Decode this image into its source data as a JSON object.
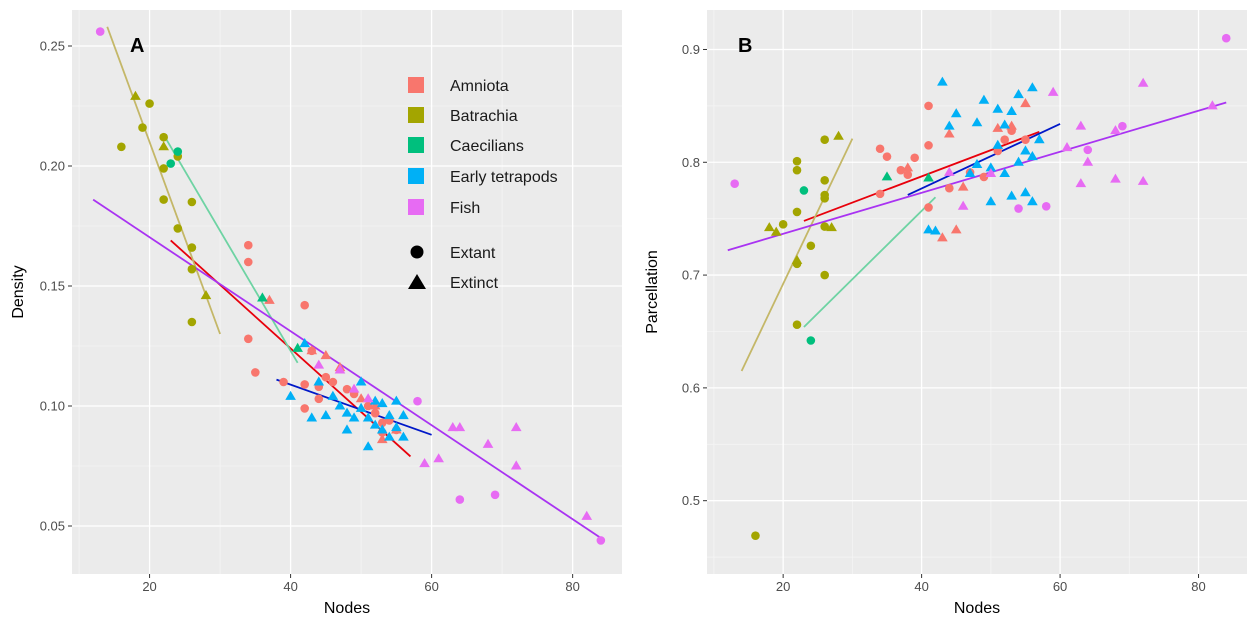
{
  "colors": {
    "panel_bg": "#EBEBEB",
    "grid_major": "#FFFFFF",
    "Amniota": "#F8766D",
    "Batrachia": "#A3A500",
    "Caecilians": "#00BF7D",
    "Early tetrapods": "#00B0F6",
    "Fish": "#E76BF3"
  },
  "chart_data": [
    {
      "type": "scatter",
      "panel_label": "A",
      "xlabel": "Nodes",
      "ylabel": "Density",
      "xlim": [
        9,
        87
      ],
      "ylim": [
        0.03,
        0.265
      ],
      "xticks": [
        20,
        40,
        60,
        80
      ],
      "xtick_labels": [
        "20",
        "40",
        "60",
        "80"
      ],
      "yticks": [
        0.05,
        0.1,
        0.15,
        0.2,
        0.25
      ],
      "ytick_labels": [
        "0.05",
        "0.10",
        "0.15",
        "0.20",
        "0.25"
      ],
      "grid": true,
      "legend_placement": "top-right",
      "legend": {
        "groups": [
          {
            "label": "Amniota",
            "key": "Amniota"
          },
          {
            "label": "Batrachia",
            "key": "Batrachia"
          },
          {
            "label": "Caecilians",
            "key": "Caecilians"
          },
          {
            "label": "Early tetrapods",
            "key": "Early tetrapods"
          },
          {
            "label": "Fish",
            "key": "Fish"
          }
        ],
        "status": [
          {
            "label": "Extant",
            "shape": "circle"
          },
          {
            "label": "Extinct",
            "shape": "triangle"
          }
        ]
      },
      "series": [
        {
          "group": "Amniota",
          "shape": "circle",
          "x": [
            34,
            34,
            34,
            35,
            39,
            42,
            42,
            42,
            43,
            44,
            44,
            45,
            46,
            48,
            49,
            51,
            52,
            53,
            53,
            54,
            55
          ],
          "y": [
            0.167,
            0.16,
            0.128,
            0.114,
            0.11,
            0.142,
            0.109,
            0.099,
            0.123,
            0.108,
            0.103,
            0.112,
            0.11,
            0.107,
            0.105,
            0.1,
            0.097,
            0.093,
            0.089,
            0.094,
            0.09
          ]
        },
        {
          "group": "Amniota",
          "shape": "triangle",
          "x": [
            37,
            43,
            45,
            47,
            50,
            52,
            53,
            55
          ],
          "y": [
            0.144,
            0.123,
            0.121,
            0.116,
            0.103,
            0.1,
            0.086,
            0.09
          ]
        },
        {
          "group": "Batrachia",
          "shape": "circle",
          "x": [
            16,
            19,
            20,
            22,
            22,
            22,
            24,
            24,
            26,
            26,
            26,
            26
          ],
          "y": [
            0.208,
            0.216,
            0.226,
            0.212,
            0.199,
            0.186,
            0.204,
            0.174,
            0.185,
            0.166,
            0.157,
            0.135
          ]
        },
        {
          "group": "Batrachia",
          "shape": "triangle",
          "x": [
            18,
            22,
            28
          ],
          "y": [
            0.229,
            0.208,
            0.146
          ]
        },
        {
          "group": "Caecilians",
          "shape": "circle",
          "x": [
            23,
            24
          ],
          "y": [
            0.201,
            0.206
          ]
        },
        {
          "group": "Caecilians",
          "shape": "triangle",
          "x": [
            36,
            41
          ],
          "y": [
            0.145,
            0.124
          ]
        },
        {
          "group": "Early tetrapods",
          "shape": "triangle",
          "x": [
            40,
            42,
            43,
            44,
            45,
            46,
            47,
            48,
            48,
            49,
            50,
            50,
            51,
            51,
            52,
            52,
            53,
            53,
            54,
            54,
            55,
            55,
            56,
            56
          ],
          "y": [
            0.104,
            0.126,
            0.095,
            0.11,
            0.096,
            0.104,
            0.1,
            0.097,
            0.09,
            0.095,
            0.11,
            0.099,
            0.095,
            0.083,
            0.102,
            0.092,
            0.101,
            0.09,
            0.096,
            0.087,
            0.102,
            0.091,
            0.096,
            0.087
          ]
        },
        {
          "group": "Fish",
          "shape": "circle",
          "x": [
            13,
            58,
            64,
            69,
            84
          ],
          "y": [
            0.256,
            0.102,
            0.061,
            0.063,
            0.044
          ]
        },
        {
          "group": "Fish",
          "shape": "triangle",
          "x": [
            44,
            47,
            49,
            51,
            59,
            61,
            63,
            64,
            68,
            72,
            72,
            82
          ],
          "y": [
            0.117,
            0.115,
            0.107,
            0.103,
            0.076,
            0.078,
            0.091,
            0.091,
            0.084,
            0.091,
            0.075,
            0.054
          ]
        }
      ],
      "trend_lines": [
        {
          "group": "Amniota",
          "x": [
            23,
            57
          ],
          "y": [
            0.169,
            0.079
          ]
        },
        {
          "group": "Batrachia",
          "x": [
            14,
            30
          ],
          "y": [
            0.258,
            0.13
          ]
        },
        {
          "group": "Caecilians",
          "x": [
            22,
            41
          ],
          "y": [
            0.213,
            0.118
          ]
        },
        {
          "group": "Early tetrapods",
          "x": [
            38,
            60
          ],
          "y": [
            0.111,
            0.088
          ]
        },
        {
          "group": "Fish",
          "x": [
            12,
            84
          ],
          "y": [
            0.186,
            0.045
          ]
        }
      ]
    },
    {
      "type": "scatter",
      "panel_label": "B",
      "xlabel": "Nodes",
      "ylabel": "Parcellation",
      "xlim": [
        9,
        87
      ],
      "ylim": [
        0.435,
        0.935
      ],
      "xticks": [
        20,
        40,
        60,
        80
      ],
      "xtick_labels": [
        "20",
        "40",
        "60",
        "80"
      ],
      "yticks": [
        0.5,
        0.6,
        0.7,
        0.8,
        0.9
      ],
      "ytick_labels": [
        "0.5",
        "0.6",
        "0.7",
        "0.8",
        "0.9"
      ],
      "grid": true,
      "series": [
        {
          "group": "Amniota",
          "shape": "circle",
          "x": [
            34,
            34,
            35,
            37,
            38,
            39,
            41,
            41,
            41,
            44,
            47,
            49,
            51,
            52,
            53,
            55
          ],
          "y": [
            0.812,
            0.772,
            0.805,
            0.793,
            0.789,
            0.804,
            0.85,
            0.815,
            0.76,
            0.777,
            0.791,
            0.787,
            0.81,
            0.82,
            0.828,
            0.82
          ]
        },
        {
          "group": "Amniota",
          "shape": "triangle",
          "x": [
            38,
            43,
            44,
            45,
            46,
            51,
            53,
            55
          ],
          "y": [
            0.795,
            0.733,
            0.825,
            0.74,
            0.778,
            0.83,
            0.832,
            0.852
          ]
        },
        {
          "group": "Batrachia",
          "shape": "circle",
          "x": [
            16,
            20,
            22,
            22,
            22,
            22,
            22,
            24,
            26,
            26,
            26,
            26,
            26,
            26
          ],
          "y": [
            0.469,
            0.745,
            0.801,
            0.793,
            0.756,
            0.71,
            0.656,
            0.726,
            0.82,
            0.784,
            0.771,
            0.743,
            0.7,
            0.768
          ]
        },
        {
          "group": "Batrachia",
          "shape": "triangle",
          "x": [
            18,
            19,
            22,
            27,
            28
          ],
          "y": [
            0.742,
            0.738,
            0.713,
            0.742,
            0.823
          ]
        },
        {
          "group": "Caecilians",
          "shape": "circle",
          "x": [
            23,
            24
          ],
          "y": [
            0.775,
            0.642
          ]
        },
        {
          "group": "Caecilians",
          "shape": "triangle",
          "x": [
            35,
            41
          ],
          "y": [
            0.787,
            0.786
          ]
        },
        {
          "group": "Early tetrapods",
          "shape": "triangle",
          "x": [
            41,
            42,
            43,
            44,
            45,
            47,
            48,
            48,
            49,
            50,
            50,
            51,
            51,
            52,
            52,
            53,
            53,
            54,
            54,
            55,
            55,
            56,
            56,
            56,
            57
          ],
          "y": [
            0.74,
            0.739,
            0.871,
            0.832,
            0.843,
            0.79,
            0.835,
            0.798,
            0.855,
            0.795,
            0.765,
            0.847,
            0.815,
            0.833,
            0.79,
            0.845,
            0.77,
            0.86,
            0.8,
            0.81,
            0.773,
            0.866,
            0.805,
            0.765,
            0.82
          ]
        },
        {
          "group": "Fish",
          "shape": "circle",
          "x": [
            13,
            54,
            58,
            64,
            69,
            84
          ],
          "y": [
            0.781,
            0.759,
            0.761,
            0.811,
            0.832,
            0.91
          ]
        },
        {
          "group": "Fish",
          "shape": "triangle",
          "x": [
            44,
            46,
            50,
            59,
            61,
            63,
            63,
            64,
            68,
            68,
            72,
            72,
            82
          ],
          "y": [
            0.791,
            0.761,
            0.79,
            0.862,
            0.813,
            0.832,
            0.781,
            0.8,
            0.828,
            0.785,
            0.87,
            0.783,
            0.85
          ]
        }
      ],
      "trend_lines": [
        {
          "group": "Amniota",
          "x": [
            23,
            57
          ],
          "y": [
            0.748,
            0.827
          ]
        },
        {
          "group": "Batrachia",
          "x": [
            14,
            30
          ],
          "y": [
            0.615,
            0.821
          ]
        },
        {
          "group": "Caecilians",
          "x": [
            23,
            42
          ],
          "y": [
            0.654,
            0.769
          ]
        },
        {
          "group": "Early tetrapods",
          "x": [
            38,
            60
          ],
          "y": [
            0.771,
            0.834
          ]
        },
        {
          "group": "Fish",
          "x": [
            12,
            84
          ],
          "y": [
            0.722,
            0.853
          ]
        }
      ]
    }
  ]
}
